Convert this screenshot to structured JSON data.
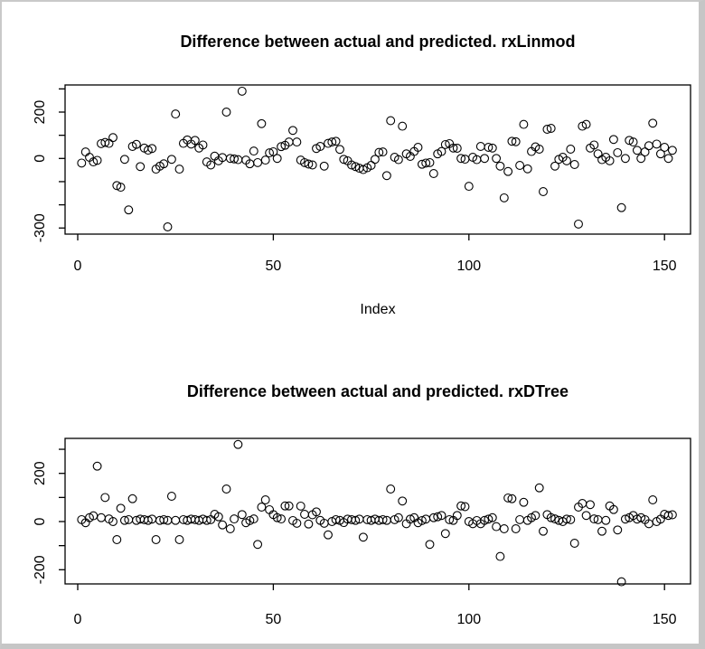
{
  "window": {
    "background": "#ffffff",
    "border_color": "#c9c9c9",
    "frame_color": "#000000",
    "point_color": "#000000"
  },
  "chart_data": [
    {
      "type": "scatter",
      "title": "Difference between actual and predicted. rxLinmod",
      "xlabel": "Index",
      "ylabel": "",
      "marker": "open-circle",
      "x_start_index": 1,
      "xlim": [
        -5,
        157
      ],
      "ylim": [
        -327,
        322
      ],
      "xticks": [
        0,
        50,
        100,
        150
      ],
      "yticks": [
        300,
        200,
        100,
        0,
        -100,
        -200,
        -300
      ],
      "ytick_labels_shown": [
        200,
        0,
        -300
      ],
      "grid": false,
      "legend": null,
      "values": [
        -20,
        28,
        5,
        -15,
        -8,
        64,
        69,
        65,
        90,
        -117,
        -124,
        -4,
        -222,
        52,
        61,
        -35,
        45,
        36,
        43,
        -46,
        -33,
        -23,
        -295,
        -4,
        192,
        -46,
        65,
        80,
        62,
        78,
        45,
        58,
        -15,
        -28,
        10,
        -10,
        4,
        200,
        0,
        -2,
        -5,
        290,
        -7,
        -23,
        32,
        -18,
        150,
        -7,
        24,
        29,
        0,
        51,
        57,
        71,
        121,
        71,
        -7,
        -18,
        -24,
        -28,
        43,
        52,
        -33,
        65,
        71,
        74,
        39,
        -4,
        -10,
        -28,
        -35,
        -42,
        -48,
        -40,
        -30,
        -4,
        26,
        28,
        -74,
        163,
        5,
        -5,
        139,
        20,
        9,
        30,
        48,
        -25,
        -20,
        -18,
        -65,
        20,
        30,
        60,
        64,
        45,
        44,
        0,
        -3,
        -120,
        5,
        -5,
        52,
        0,
        48,
        45,
        0,
        -33,
        -170,
        -56,
        74,
        72,
        -30,
        147,
        -45,
        30,
        50,
        40,
        -143,
        126,
        130,
        -33,
        -4,
        5,
        -10,
        40,
        -26,
        -283,
        139,
        147,
        45,
        58,
        20,
        -5,
        5,
        -10,
        82,
        25,
        -212,
        0,
        78,
        71,
        35,
        0,
        28,
        55,
        152,
        62,
        20,
        48,
        0,
        35
      ]
    },
    {
      "type": "scatter",
      "title": "Difference between actual and predicted. rxDTree",
      "xlabel": "",
      "ylabel": "",
      "marker": "open-circle",
      "x_start_index": 1,
      "xlim": [
        -5,
        157
      ],
      "ylim": [
        -262,
        345
      ],
      "xticks": [
        0,
        50,
        100,
        150
      ],
      "yticks": [
        300,
        200,
        100,
        0,
        -100,
        -200
      ],
      "ytick_labels_shown": [
        200,
        0,
        -200
      ],
      "grid": false,
      "legend": null,
      "values": [
        8,
        -5,
        16,
        24,
        230,
        16,
        100,
        11,
        0,
        -75,
        55,
        5,
        8,
        95,
        5,
        10,
        8,
        5,
        10,
        -75,
        5,
        8,
        5,
        105,
        5,
        -75,
        8,
        5,
        10,
        8,
        5,
        10,
        5,
        8,
        30,
        20,
        -14,
        135,
        -30,
        11,
        320,
        29,
        -5,
        4,
        11,
        -95,
        60,
        90,
        49,
        29,
        16,
        11,
        65,
        65,
        4,
        -7,
        64,
        30,
        -10,
        28,
        40,
        5,
        -7,
        -55,
        0,
        8,
        5,
        -4,
        10,
        8,
        5,
        10,
        -65,
        8,
        5,
        10,
        5,
        8,
        5,
        135,
        8,
        16,
        85,
        -9,
        10,
        16,
        -5,
        4,
        10,
        -95,
        16,
        20,
        25,
        -50,
        8,
        5,
        25,
        65,
        62,
        0,
        -9,
        4,
        -9,
        5,
        10,
        16,
        -21,
        -145,
        -30,
        98,
        95,
        -30,
        8,
        80,
        5,
        16,
        25,
        140,
        -40,
        29,
        16,
        11,
        5,
        0,
        10,
        8,
        -90,
        60,
        75,
        25,
        70,
        11,
        8,
        -40,
        5,
        65,
        50,
        -35,
        -250,
        10,
        16,
        25,
        10,
        16,
        8,
        -9,
        90,
        0,
        10,
        30,
        25,
        28
      ]
    }
  ]
}
